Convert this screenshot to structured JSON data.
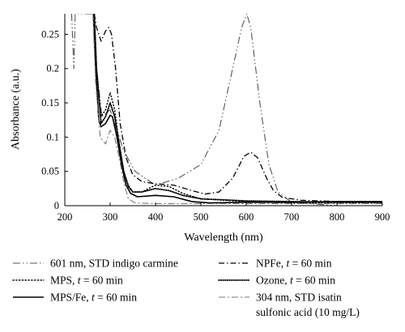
{
  "chart_data": {
    "type": "line",
    "xlabel": "Wavelength (nm)",
    "ylabel": "Absorbance (a.u.)",
    "xlim": [
      200,
      900
    ],
    "ylim": [
      0,
      0.28
    ],
    "xticks": [
      200,
      300,
      400,
      500,
      600,
      700,
      800,
      900
    ],
    "yticks": [
      0,
      0.05,
      0.1,
      0.15,
      0.2,
      0.25
    ],
    "ytick_labels": [
      "0",
      "0.05",
      "0.1",
      "0.15",
      "0.2",
      "0.25"
    ],
    "grid": false,
    "legend_position": "bottom",
    "series": [
      {
        "name": "601 nm, STD indigo carmine",
        "color": "#555555",
        "dash": "long-dash-dot-dot",
        "points": [
          [
            215,
            0.28
          ],
          [
            220,
            0.2
          ],
          [
            223,
            0.28
          ],
          [
            262,
            0.28
          ],
          [
            270,
            0.2
          ],
          [
            282,
            0.13
          ],
          [
            300,
            0.14
          ],
          [
            330,
            0.08
          ],
          [
            355,
            0.05
          ],
          [
            400,
            0.03
          ],
          [
            450,
            0.04
          ],
          [
            500,
            0.06
          ],
          [
            540,
            0.11
          ],
          [
            570,
            0.2
          ],
          [
            590,
            0.26
          ],
          [
            601,
            0.28
          ],
          [
            610,
            0.26
          ],
          [
            630,
            0.15
          ],
          [
            650,
            0.06
          ],
          [
            670,
            0.02
          ],
          [
            700,
            0.005
          ],
          [
            800,
            0.0
          ],
          [
            900,
            0.0
          ]
        ]
      },
      {
        "name": "NPFe",
        "color": "#000000",
        "dash": "dash-dot",
        "points": [
          [
            265,
            0.28
          ],
          [
            270,
            0.26
          ],
          [
            280,
            0.24
          ],
          [
            290,
            0.255
          ],
          [
            297,
            0.26
          ],
          [
            303,
            0.25
          ],
          [
            312,
            0.2
          ],
          [
            322,
            0.12
          ],
          [
            335,
            0.07
          ],
          [
            350,
            0.045
          ],
          [
            370,
            0.035
          ],
          [
            400,
            0.032
          ],
          [
            440,
            0.03
          ],
          [
            480,
            0.022
          ],
          [
            510,
            0.017
          ],
          [
            540,
            0.02
          ],
          [
            570,
            0.04
          ],
          [
            595,
            0.072
          ],
          [
            610,
            0.078
          ],
          [
            625,
            0.07
          ],
          [
            645,
            0.04
          ],
          [
            660,
            0.022
          ],
          [
            680,
            0.012
          ],
          [
            720,
            0.008
          ],
          [
            800,
            0.006
          ],
          [
            900,
            0.005
          ]
        ]
      },
      {
        "name": "MPS",
        "color": "#000000",
        "dash": "dotted",
        "points": [
          [
            265,
            0.28
          ],
          [
            270,
            0.2
          ],
          [
            280,
            0.13
          ],
          [
            290,
            0.14
          ],
          [
            300,
            0.165
          ],
          [
            310,
            0.14
          ],
          [
            320,
            0.09
          ],
          [
            330,
            0.05
          ],
          [
            340,
            0.03
          ],
          [
            350,
            0.02
          ],
          [
            370,
            0.02
          ],
          [
            400,
            0.03
          ],
          [
            430,
            0.028
          ],
          [
            460,
            0.018
          ],
          [
            500,
            0.01
          ],
          [
            600,
            0.006
          ],
          [
            700,
            0.004
          ],
          [
            800,
            0.004
          ],
          [
            900,
            0.004
          ]
        ]
      },
      {
        "name": "Ozone",
        "color": "#000000",
        "dash": "fine-dotted",
        "points": [
          [
            265,
            0.28
          ],
          [
            270,
            0.2
          ],
          [
            280,
            0.12
          ],
          [
            290,
            0.13
          ],
          [
            300,
            0.15
          ],
          [
            310,
            0.13
          ],
          [
            320,
            0.09
          ],
          [
            330,
            0.05
          ],
          [
            340,
            0.028
          ],
          [
            350,
            0.02
          ],
          [
            370,
            0.02
          ],
          [
            400,
            0.025
          ],
          [
            430,
            0.022
          ],
          [
            460,
            0.015
          ],
          [
            500,
            0.01
          ],
          [
            600,
            0.007
          ],
          [
            700,
            0.006
          ],
          [
            800,
            0.005
          ],
          [
            900,
            0.005
          ]
        ]
      },
      {
        "name": "MPS/Fe",
        "color": "#000000",
        "dash": "solid",
        "points": [
          [
            263,
            0.28
          ],
          [
            268,
            0.2
          ],
          [
            275,
            0.125
          ],
          [
            280,
            0.115
          ],
          [
            290,
            0.12
          ],
          [
            300,
            0.132
          ],
          [
            305,
            0.13
          ],
          [
            315,
            0.1
          ],
          [
            325,
            0.06
          ],
          [
            335,
            0.03
          ],
          [
            345,
            0.018
          ],
          [
            360,
            0.013
          ],
          [
            400,
            0.015
          ],
          [
            440,
            0.013
          ],
          [
            480,
            0.006
          ],
          [
            520,
            0.004
          ],
          [
            600,
            0.005
          ],
          [
            700,
            0.005
          ],
          [
            800,
            0.006
          ],
          [
            900,
            0.006
          ]
        ]
      },
      {
        "name": "304 nm, STD isatin sulfonic acid",
        "color": "#777777",
        "dash": "dash-dot-gray",
        "points": [
          [
            262,
            0.28
          ],
          [
            268,
            0.18
          ],
          [
            278,
            0.1
          ],
          [
            290,
            0.09
          ],
          [
            300,
            0.11
          ],
          [
            310,
            0.1
          ],
          [
            320,
            0.07
          ],
          [
            330,
            0.035
          ],
          [
            340,
            0.01
          ],
          [
            355,
            0.004
          ],
          [
            400,
            0.003
          ],
          [
            500,
            0.003
          ],
          [
            600,
            0.003
          ],
          [
            700,
            0.003
          ],
          [
            800,
            0.003
          ],
          [
            900,
            0.003
          ]
        ]
      }
    ],
    "legend": [
      {
        "label": "601 nm, STD indigo carmine",
        "dash": "long-dash-dot-dot",
        "color": "#555555"
      },
      {
        "label": "NPFe, t = 60 min",
        "pre": "NPFe, ",
        "var": "t",
        "post": " = 60 min",
        "dash": "dash-dot",
        "color": "#000000"
      },
      {
        "label": "MPS, t = 60 min",
        "pre": "MPS, ",
        "var": "t",
        "post": " = 60 min",
        "dash": "dotted",
        "color": "#000000"
      },
      {
        "label": "Ozone, t = 60 min",
        "pre": "Ozone, ",
        "var": "t",
        "post": " = 60 min",
        "dash": "fine-dotted",
        "color": "#000000"
      },
      {
        "label": "MPS/Fe, t = 60 min",
        "pre": "MPS/Fe, ",
        "var": "t",
        "post": " = 60 min",
        "dash": "solid",
        "color": "#000000"
      },
      {
        "label": "304 nm, STD isatin sulfonic acid (10 mg/L)",
        "line1": "304 nm, STD isatin",
        "line2": "sulfonic acid (10 mg/L)",
        "dash": "dash-dot-gray",
        "color": "#777777"
      }
    ]
  }
}
